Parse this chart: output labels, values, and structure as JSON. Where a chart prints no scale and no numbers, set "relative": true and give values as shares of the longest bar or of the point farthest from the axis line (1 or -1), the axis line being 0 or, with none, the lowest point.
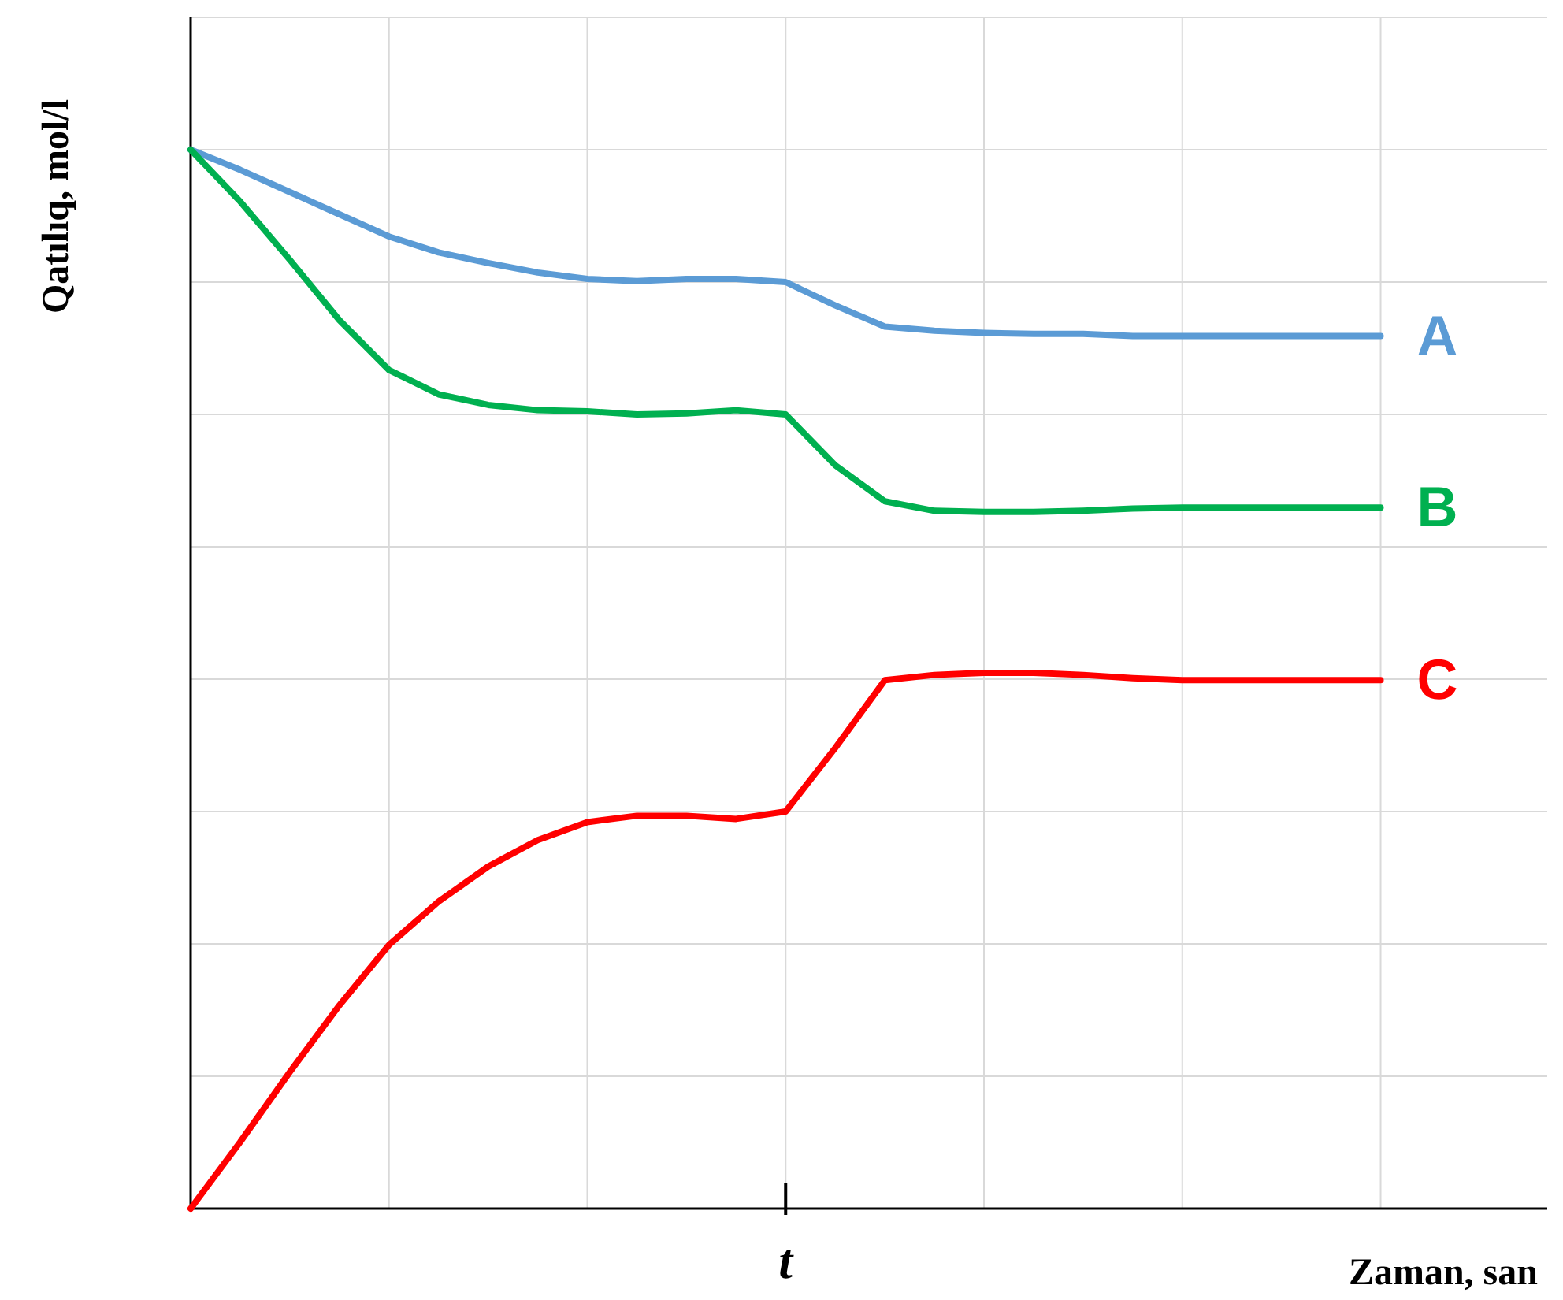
{
  "chart_data": {
    "type": "line",
    "relative": true,
    "xlabel": "Zaman, san",
    "ylabel": "Qatılıq, mol/l",
    "categories": [
      null,
      null,
      null,
      null,
      null,
      null,
      null,
      null,
      null,
      null,
      null,
      null,
      null,
      null,
      null,
      null,
      null,
      null,
      null,
      null,
      null,
      null,
      null,
      null,
      null
    ],
    "annotations": [
      "t"
    ],
    "grid": true,
    "legend": false,
    "marker": "none",
    "line_style": "solid",
    "series": [
      {
        "name": "A",
        "color": "#5b9bd5",
        "values": [
          1,
          0.981,
          0.96,
          0.939,
          0.918,
          0.903,
          0.893,
          0.884,
          0.878,
          0.876,
          0.878,
          0.878,
          0.875,
          0.853,
          0.833,
          0.829,
          0.827,
          0.826,
          0.826,
          0.824,
          0.824,
          0.824,
          0.824,
          0.824,
          0.824
        ]
      },
      {
        "name": "B",
        "color": "#00b050",
        "values": [
          1,
          0.951,
          0.896,
          0.839,
          0.792,
          0.769,
          0.759,
          0.754,
          0.753,
          0.75,
          0.751,
          0.754,
          0.75,
          0.702,
          0.668,
          0.659,
          0.658,
          0.658,
          0.659,
          0.661,
          0.662,
          0.662,
          0.662,
          0.662,
          0.662
        ]
      },
      {
        "name": "C",
        "color": "#ff0000",
        "values": [
          0,
          0.063,
          0.129,
          0.192,
          0.249,
          0.29,
          0.323,
          0.348,
          0.365,
          0.371,
          0.371,
          0.368,
          0.375,
          0.435,
          0.499,
          0.504,
          0.506,
          0.506,
          0.504,
          0.501,
          0.499,
          0.499,
          0.499,
          0.499,
          0.499
        ]
      }
    ]
  }
}
